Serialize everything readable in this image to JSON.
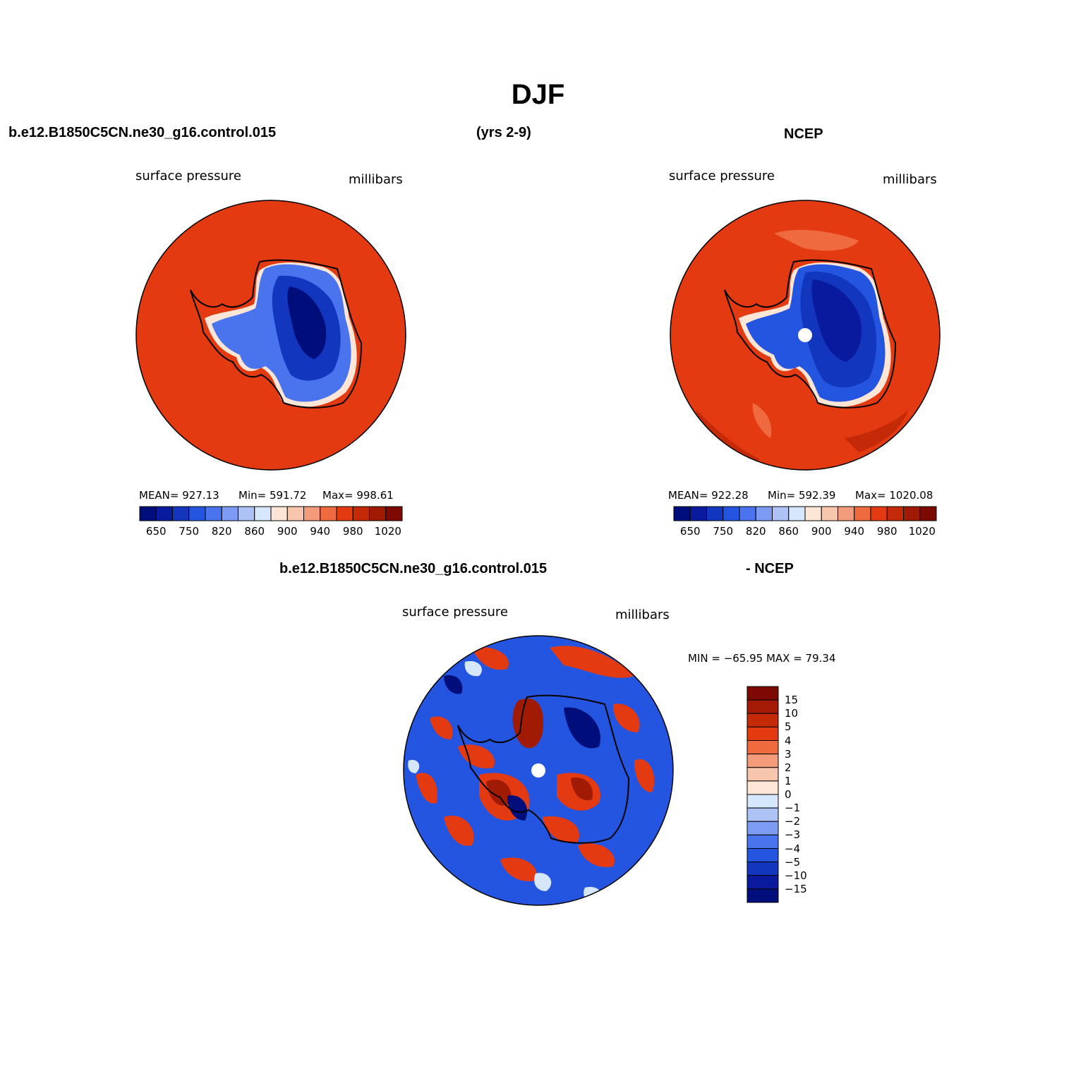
{
  "title": "DJF",
  "header": {
    "case_name": "b.e12.B1850C5CN.ne30_g16.control.015",
    "years": "(yrs 2-9)",
    "obs_name": "NCEP"
  },
  "panels": {
    "model": {
      "left_label": "surface pressure",
      "right_label": "millibars",
      "mean": "MEAN= 927.13",
      "min": "Min= 591.72",
      "max": "Max= 998.61"
    },
    "obs": {
      "left_label": "surface pressure",
      "right_label": "millibars",
      "mean": "MEAN= 922.28",
      "min": "Min= 592.39",
      "max": "Max= 1020.08"
    },
    "diff": {
      "title_left": "b.e12.B1850C5CN.ne30_g16.control.015",
      "title_right": "- NCEP",
      "left_label": "surface pressure",
      "right_label": "millibars",
      "minmax": "MIN = −65.95 MAX =  79.34"
    }
  },
  "colorbar_abs": {
    "colors": [
      "#000e7c",
      "#0a1a9e",
      "#1236bd",
      "#2455e0",
      "#4a74ee",
      "#7c9bf2",
      "#adc2f5",
      "#d6e6fb",
      "#fde6d6",
      "#f8c6ad",
      "#f49c7a",
      "#f06a3f",
      "#e33a12",
      "#c42a08",
      "#a01a04",
      "#7c0a02"
    ],
    "tick_labels": [
      "650",
      "750",
      "820",
      "860",
      "900",
      "940",
      "980",
      "1020"
    ]
  },
  "colorbar_diff": {
    "colors": [
      "#7c0a02",
      "#a51a04",
      "#c42a08",
      "#e33a12",
      "#f06a3f",
      "#f49c7a",
      "#f8c6ad",
      "#fde6d6",
      "#d6e6fb",
      "#adc2f5",
      "#7c9bf2",
      "#4a74ee",
      "#2455e0",
      "#1236bd",
      "#0a1a9e",
      "#000e7c"
    ],
    "tick_labels": [
      "15",
      "10",
      "5",
      "4",
      "3",
      "2",
      "1",
      "0",
      "−1",
      "−2",
      "−3",
      "−4",
      "−5",
      "−10",
      "−15"
    ]
  }
}
